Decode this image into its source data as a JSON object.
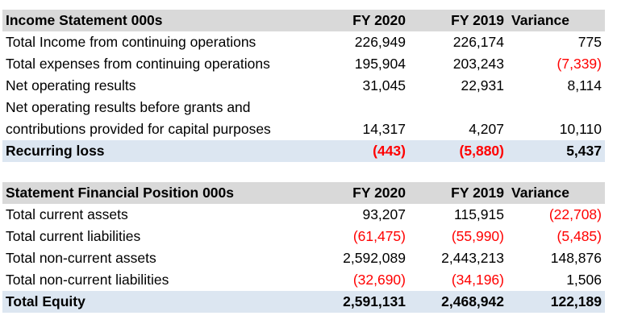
{
  "income_statement": {
    "header": {
      "label": "Income Statement 000s",
      "fy2020": "FY 2020",
      "fy2019": "FY 2019",
      "variance": "Variance"
    },
    "rows": [
      {
        "label": "Total Income from continuing operations",
        "fy2020": "226,949",
        "fy2019": "226,174",
        "variance": "775"
      },
      {
        "label": "Total expenses from continuing operations",
        "fy2020": "195,904",
        "fy2019": "203,243",
        "variance": "(7,339)"
      },
      {
        "label": "Net operating results",
        "fy2020": "31,045",
        "fy2019": "22,931",
        "variance": "8,114"
      },
      {
        "label": "Net operating results before grants and contributions provided for capital purposes",
        "fy2020": "14,317",
        "fy2019": "4,207",
        "variance": "10,110"
      }
    ],
    "total": {
      "label": "Recurring loss",
      "fy2020": "(443)",
      "fy2019": "(5,880)",
      "variance": "5,437"
    }
  },
  "financial_position": {
    "header": {
      "label": "Statement Financial Position 000s",
      "fy2020": "FY 2020",
      "fy2019": "FY 2019",
      "variance": "Variance"
    },
    "rows": [
      {
        "label": "Total current assets",
        "fy2020": "93,207",
        "fy2019": "115,915",
        "variance": "(22,708)"
      },
      {
        "label": "Total current liabilities",
        "fy2020": "(61,475)",
        "fy2019": "(55,990)",
        "variance": "(5,485)"
      },
      {
        "label": "Total non-current assets",
        "fy2020": "2,592,089",
        "fy2019": "2,443,213",
        "variance": "148,876"
      },
      {
        "label": "Total non-current liabilities",
        "fy2020": "(32,690)",
        "fy2019": "(34,196)",
        "variance": "1,506"
      }
    ],
    "total": {
      "label": "Total Equity",
      "fy2020": "2,591,131",
      "fy2019": "2,468,942",
      "variance": "122,189"
    }
  },
  "colors": {
    "header_bg": "#d9d9d9",
    "total_bg": "#dce6f1",
    "negative": "#ff0000"
  }
}
